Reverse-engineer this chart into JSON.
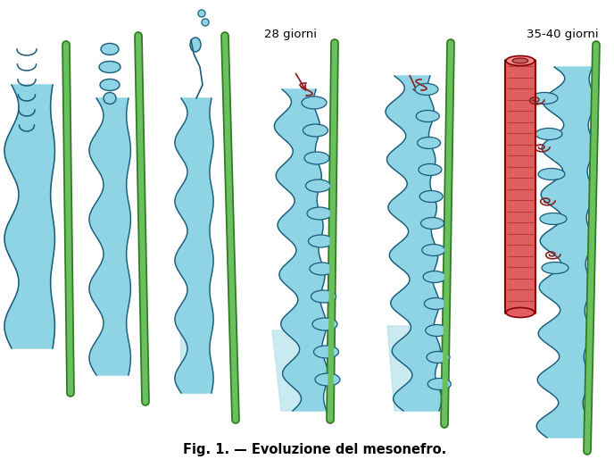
{
  "title": "Fig. 1. — Evoluzione del mesonefro.",
  "label_28": "28 giorni",
  "label_35": "35-40 giorni",
  "bg_color": "#ffffff",
  "green_fill": "#6abf5e",
  "green_dark": "#2d7a1f",
  "blue_light": "#8ed4e4",
  "blue_fill": "#a8dde8",
  "red_vessel": "#e06060",
  "red_dark": "#8B2020",
  "outline_color": "#1a5a7a",
  "title_fontsize": 10.5,
  "label_fontsize": 9.5
}
